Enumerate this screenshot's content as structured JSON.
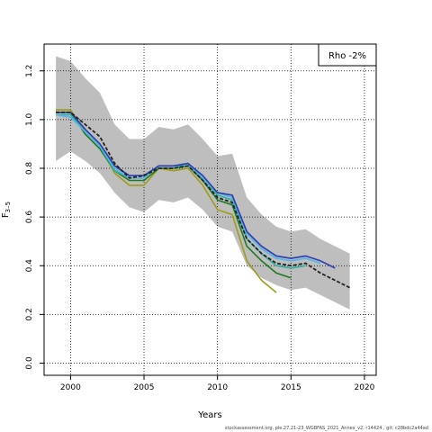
{
  "chart_data": {
    "type": "line",
    "xlabel": "Years",
    "ylabel": "F",
    "ylabel_sub": "3–5",
    "xlim": [
      1998.2,
      2020.8
    ],
    "ylim": [
      -0.05,
      1.31
    ],
    "xticks": [
      2000,
      2005,
      2010,
      2015,
      2020
    ],
    "yticks": [
      0.0,
      0.2,
      0.4,
      0.6,
      0.8,
      1.0,
      1.2
    ],
    "grid": true,
    "grid_style": "dotted",
    "annotation": "Rho -2%",
    "annotation_position": "top-right",
    "band": {
      "color": "#bebebe",
      "x": [
        1999,
        2000,
        2001,
        2002,
        2003,
        2004,
        2005,
        2006,
        2007,
        2008,
        2009,
        2010,
        2011,
        2012,
        2013,
        2014,
        2015,
        2016,
        2017,
        2018,
        2019
      ],
      "upper": [
        1.26,
        1.24,
        1.17,
        1.11,
        0.98,
        0.92,
        0.92,
        0.97,
        0.96,
        0.98,
        0.92,
        0.85,
        0.86,
        0.68,
        0.61,
        0.56,
        0.54,
        0.55,
        0.51,
        0.48,
        0.45
      ],
      "lower": [
        0.83,
        0.87,
        0.83,
        0.78,
        0.7,
        0.64,
        0.62,
        0.67,
        0.66,
        0.68,
        0.63,
        0.56,
        0.54,
        0.4,
        0.35,
        0.32,
        0.3,
        0.31,
        0.28,
        0.25,
        0.22
      ]
    },
    "series": [
      {
        "color": "#9c9c1a",
        "dash": false,
        "x": [
          1999,
          2000,
          2001,
          2002,
          2003,
          2004,
          2005,
          2006,
          2007,
          2008,
          2009,
          2010,
          2011,
          2012,
          2013,
          2014
        ],
        "values": [
          1.04,
          1.04,
          0.95,
          0.89,
          0.78,
          0.73,
          0.73,
          0.8,
          0.79,
          0.8,
          0.73,
          0.63,
          0.61,
          0.42,
          0.34,
          0.29
        ]
      },
      {
        "color": "#1f7a1f",
        "dash": false,
        "x": [
          1999,
          2000,
          2001,
          2002,
          2003,
          2004,
          2005,
          2006,
          2007,
          2008,
          2009,
          2010,
          2011,
          2012,
          2013,
          2014,
          2015
        ],
        "values": [
          1.03,
          1.03,
          0.94,
          0.88,
          0.79,
          0.75,
          0.75,
          0.8,
          0.8,
          0.81,
          0.75,
          0.67,
          0.65,
          0.48,
          0.42,
          0.37,
          0.35
        ]
      },
      {
        "color": "#2fb0a0",
        "dash": false,
        "x": [
          1999,
          2000,
          2001,
          2002,
          2003,
          2004,
          2005,
          2006,
          2007,
          2008,
          2009,
          2010,
          2011,
          2012,
          2013,
          2014,
          2015,
          2016
        ],
        "values": [
          1.02,
          1.02,
          0.95,
          0.89,
          0.79,
          0.76,
          0.76,
          0.81,
          0.81,
          0.81,
          0.76,
          0.69,
          0.67,
          0.51,
          0.45,
          0.4,
          0.39,
          0.4
        ]
      },
      {
        "color": "#56b4e9",
        "dash": false,
        "x": [
          1999,
          2000,
          2001,
          2002,
          2003,
          2004,
          2005,
          2006,
          2007,
          2008,
          2009,
          2010,
          2011,
          2012,
          2013,
          2014,
          2015,
          2016,
          2017
        ],
        "values": [
          1.02,
          1.01,
          0.95,
          0.89,
          0.8,
          0.76,
          0.76,
          0.81,
          0.81,
          0.82,
          0.76,
          0.7,
          0.68,
          0.53,
          0.47,
          0.43,
          0.42,
          0.43,
          0.41
        ]
      },
      {
        "color": "#2b3bb0",
        "dash": false,
        "x": [
          1999,
          2000,
          2001,
          2002,
          2003,
          2004,
          2005,
          2006,
          2007,
          2008,
          2009,
          2010,
          2011,
          2012,
          2013,
          2014,
          2015,
          2016,
          2017,
          2018
        ],
        "values": [
          1.03,
          1.03,
          0.96,
          0.9,
          0.81,
          0.77,
          0.77,
          0.81,
          0.81,
          0.82,
          0.77,
          0.7,
          0.69,
          0.54,
          0.48,
          0.44,
          0.43,
          0.44,
          0.42,
          0.39
        ]
      },
      {
        "color": "#222222",
        "dash": true,
        "x": [
          1999,
          2000,
          2001,
          2002,
          2003,
          2004,
          2005,
          2006,
          2007,
          2008,
          2009,
          2010,
          2011,
          2012,
          2013,
          2014,
          2015,
          2016,
          2017,
          2018,
          2019
        ],
        "values": [
          1.03,
          1.03,
          0.98,
          0.93,
          0.82,
          0.76,
          0.77,
          0.8,
          0.8,
          0.81,
          0.75,
          0.68,
          0.66,
          0.51,
          0.45,
          0.41,
          0.4,
          0.41,
          0.37,
          0.34,
          0.31
        ]
      }
    ]
  },
  "footer": "stockassessment.org, ple.27.21-23_WGBFAS_2021_Annex_v2, r14424 , git: c28bdc2a44ad"
}
